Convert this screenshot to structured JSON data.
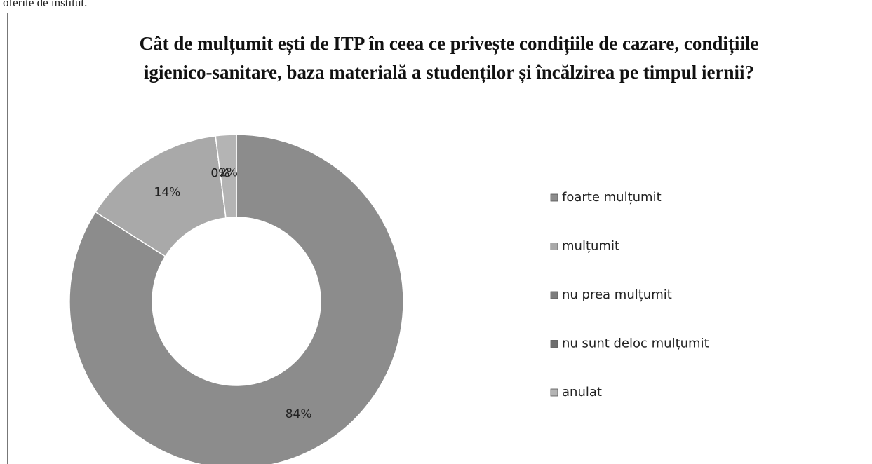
{
  "header_text": "oferite de institut.",
  "chart_data": {
    "type": "donut",
    "title": "Cât de mulțumit ești de ITP în ceea ce privește condițiile de cazare, condițiile igienico-sanitare, baza materială a studenților și încălzirea pe timpul iernii?",
    "categories": [
      "foarte mulțumit",
      "mulțumit",
      "nu prea mulțumit",
      "nu sunt deloc mulțumit",
      "anulat"
    ],
    "values": [
      84,
      14,
      0,
      0,
      2
    ],
    "value_labels": [
      "84%",
      "14%",
      "0%",
      "0%",
      "2%"
    ],
    "colors": [
      "#8c8c8c",
      "#a9a9a9",
      "#7d7d7d",
      "#6e6e6e",
      "#b4b4b4"
    ],
    "legend": "right"
  }
}
